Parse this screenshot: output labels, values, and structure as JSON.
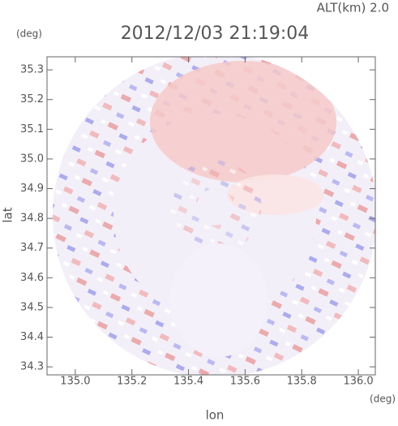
{
  "chart_data": {
    "type": "radar-ppi",
    "title": "2012/12/03 21:19:04",
    "altitude_label": "ALT(km) 2.0",
    "y_unit": "(deg)",
    "x_unit": "(deg)",
    "x_label": "lon",
    "y_label": "lat",
    "xlim": [
      134.9,
      136.06
    ],
    "ylim": [
      34.273,
      35.344
    ],
    "xticks": [
      {
        "value": 135,
        "label": "135.0"
      },
      135.2,
      135.4,
      135.6,
      135.8,
      {
        "value": 136,
        "label": "136.0"
      }
    ],
    "yticks": [
      {
        "value": 35.3,
        "label": "35.3"
      },
      {
        "value": 35.2,
        "label": "35.2"
      },
      {
        "value": 35.1,
        "label": "35.1"
      },
      {
        "value": 35,
        "label": "35.0"
      },
      34.9,
      34.8,
      34.7,
      34.6,
      34.5,
      34.4,
      34.3
    ]
  }
}
